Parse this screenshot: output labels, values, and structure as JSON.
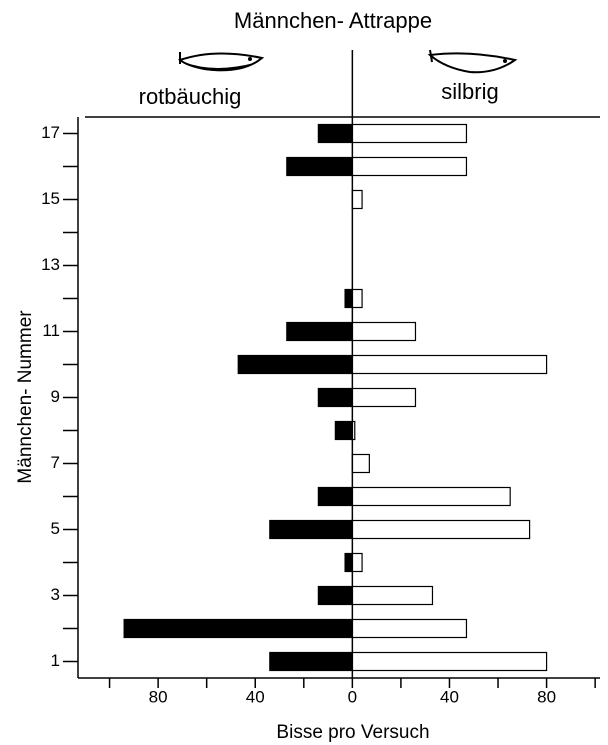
{
  "chart_data": {
    "type": "bar",
    "orientation": "horizontal",
    "title": "Männchen- Attrappe",
    "x_label": "Bisse pro Versuch",
    "y_label": "Männchen- Nummer",
    "y": [
      1,
      2,
      3,
      4,
      5,
      6,
      7,
      8,
      9,
      10,
      11,
      12,
      13,
      14,
      15,
      16,
      17
    ],
    "series": [
      {
        "name": "rotbäuchig",
        "color": "#000000",
        "values": [
          -34,
          -94,
          -14,
          -3,
          -34,
          -14,
          0,
          -7,
          -14,
          -47,
          -27,
          -3,
          0,
          0,
          0,
          -27,
          -14
        ]
      },
      {
        "name": "silbrig",
        "color": "#ffffff",
        "values": [
          80,
          47,
          33,
          4,
          73,
          65,
          7,
          1,
          26,
          80,
          26,
          4,
          0,
          0,
          4,
          47,
          47
        ]
      }
    ],
    "xlim": [
      -113,
      102
    ],
    "xticks": [
      {
        "value": -80,
        "label": "80"
      },
      {
        "value": -40,
        "label": "40"
      },
      0,
      40,
      80
    ],
    "minor_xticks": [
      -100,
      -60,
      -20,
      20,
      60,
      100
    ],
    "ylim": [
      0.5,
      17.5
    ],
    "yticks": [
      1,
      3,
      5,
      7,
      9,
      11,
      13,
      15,
      17
    ],
    "minor_yticks": [
      2,
      4,
      6,
      8,
      10,
      12,
      14,
      16
    ]
  }
}
